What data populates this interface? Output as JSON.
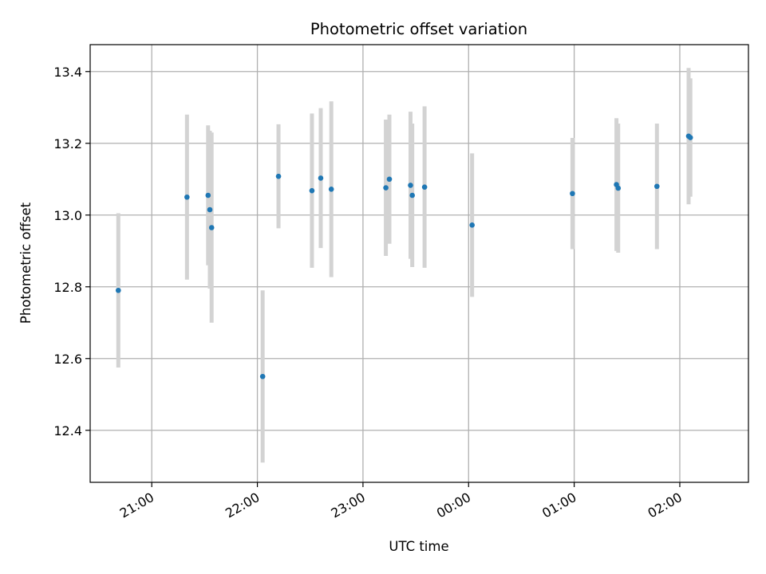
{
  "chart_data": {
    "type": "scatter",
    "title": "Photometric offset variation",
    "xlabel": "UTC time",
    "ylabel": "Photometric offset",
    "x_unit": "UTC time (hh:mm)",
    "xlim": [
      "20:25",
      "02:39"
    ],
    "ylim": [
      12.255,
      13.475
    ],
    "grid": true,
    "x_ticks": [
      "21:00",
      "22:00",
      "23:00",
      "00:00",
      "01:00",
      "02:00"
    ],
    "y_ticks": [
      "12.4",
      "12.6",
      "12.8",
      "13.0",
      "13.2",
      "13.4"
    ],
    "colors": {
      "marker": "#1f77b4",
      "errorbar": "#d3d3d3",
      "grid": "#b0b0b0"
    },
    "series": [
      {
        "points": [
          {
            "x": "20:41",
            "y": 12.79,
            "yerr": 0.215
          },
          {
            "x": "21:20",
            "y": 13.05,
            "yerr": 0.23
          },
          {
            "x": "21:32",
            "y": 13.055,
            "yerr": 0.195
          },
          {
            "x": "21:33",
            "y": 13.015,
            "yerr": 0.22
          },
          {
            "x": "21:34",
            "y": 12.965,
            "yerr": 0.265
          },
          {
            "x": "22:03",
            "y": 12.55,
            "yerr": 0.24
          },
          {
            "x": "22:12",
            "y": 13.108,
            "yerr": 0.145
          },
          {
            "x": "22:31",
            "y": 13.068,
            "yerr": 0.215
          },
          {
            "x": "22:36",
            "y": 13.103,
            "yerr": 0.195
          },
          {
            "x": "22:42",
            "y": 13.072,
            "yerr": 0.245
          },
          {
            "x": "23:13",
            "y": 13.076,
            "yerr": 0.19
          },
          {
            "x": "23:15",
            "y": 13.1,
            "yerr": 0.18
          },
          {
            "x": "23:27",
            "y": 13.083,
            "yerr": 0.205
          },
          {
            "x": "23:28",
            "y": 13.055,
            "yerr": 0.2
          },
          {
            "x": "23:35",
            "y": 13.078,
            "yerr": 0.225
          },
          {
            "x": "00:02",
            "y": 12.972,
            "yerr": 0.2
          },
          {
            "x": "00:59",
            "y": 13.06,
            "yerr": 0.155
          },
          {
            "x": "01:24",
            "y": 13.085,
            "yerr": 0.185
          },
          {
            "x": "01:25",
            "y": 13.075,
            "yerr": 0.18
          },
          {
            "x": "01:47",
            "y": 13.08,
            "yerr": 0.175
          },
          {
            "x": "02:05",
            "y": 13.22,
            "yerr": 0.19
          },
          {
            "x": "02:06",
            "y": 13.216,
            "yerr": 0.165
          }
        ]
      }
    ]
  }
}
